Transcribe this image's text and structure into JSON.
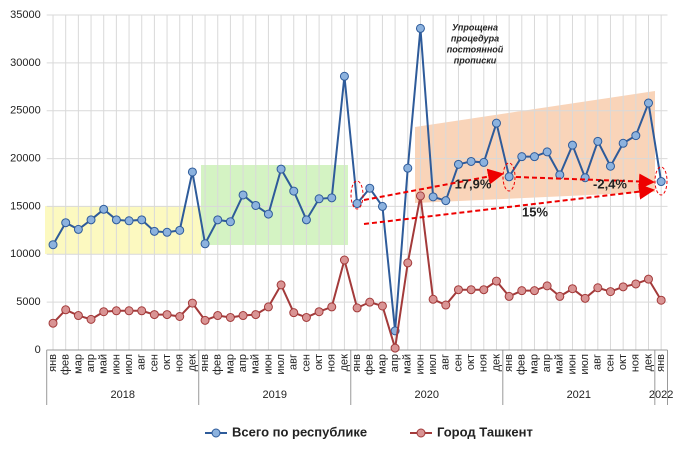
{
  "chart_data": {
    "type": "line",
    "categories": [
      "янв",
      "фев",
      "мар",
      "апр",
      "май",
      "июн",
      "июл",
      "авг",
      "сен",
      "окт",
      "ноя",
      "дек",
      "янв",
      "фев",
      "мар",
      "апр",
      "май",
      "июн",
      "июл",
      "авг",
      "сен",
      "окт",
      "ноя",
      "дек",
      "янв",
      "фев",
      "мар",
      "апр",
      "май",
      "июн",
      "июл",
      "авг",
      "сен",
      "окт",
      "ноя",
      "дек",
      "янв",
      "фев",
      "мар",
      "апр",
      "май",
      "июн",
      "июл",
      "авг",
      "сен",
      "окт",
      "ноя",
      "дек",
      "янв"
    ],
    "years": [
      "2018",
      "2019",
      "2020",
      "2021",
      "2022"
    ],
    "series": [
      {
        "name": "Всего по республике",
        "color": "#2e5b9a",
        "marker": "#8cb2de",
        "values": [
          11000,
          13300,
          12600,
          13600,
          14700,
          13600,
          13500,
          13600,
          12400,
          12300,
          12500,
          18600,
          11100,
          13600,
          13400,
          16200,
          15100,
          14200,
          18900,
          16600,
          13600,
          15800,
          15900,
          28600,
          15300,
          16900,
          15000,
          2000,
          19000,
          33600,
          16000,
          15600,
          19400,
          19700,
          19600,
          23700,
          18100,
          20200,
          20200,
          20700,
          18300,
          21400,
          18000,
          21800,
          19200,
          21600,
          22400,
          25800,
          17600
        ]
      },
      {
        "name": "Город Ташкент",
        "color": "#a33a3a",
        "marker": "#d99494",
        "values": [
          2800,
          4200,
          3600,
          3200,
          4000,
          4100,
          4100,
          4100,
          3700,
          3700,
          3500,
          4900,
          3100,
          3600,
          3400,
          3600,
          3700,
          4500,
          6800,
          3900,
          3400,
          4000,
          4500,
          9400,
          4400,
          5000,
          4600,
          200,
          9100,
          16100,
          5300,
          4700,
          6300,
          6300,
          6300,
          7200,
          5600,
          6200,
          6200,
          6700,
          5600,
          6400,
          5400,
          6500,
          6100,
          6600,
          6900,
          7400,
          5200
        ]
      }
    ],
    "ylim": [
      0,
      35000
    ],
    "yticks": [
      0,
      5000,
      10000,
      15000,
      20000,
      25000,
      30000,
      35000
    ],
    "grid": true,
    "note": [
      "Упрощена",
      "процедура",
      "постоянной",
      "прописки"
    ],
    "growth_labels": [
      "17,9%",
      "-2,4%",
      "15%"
    ]
  }
}
